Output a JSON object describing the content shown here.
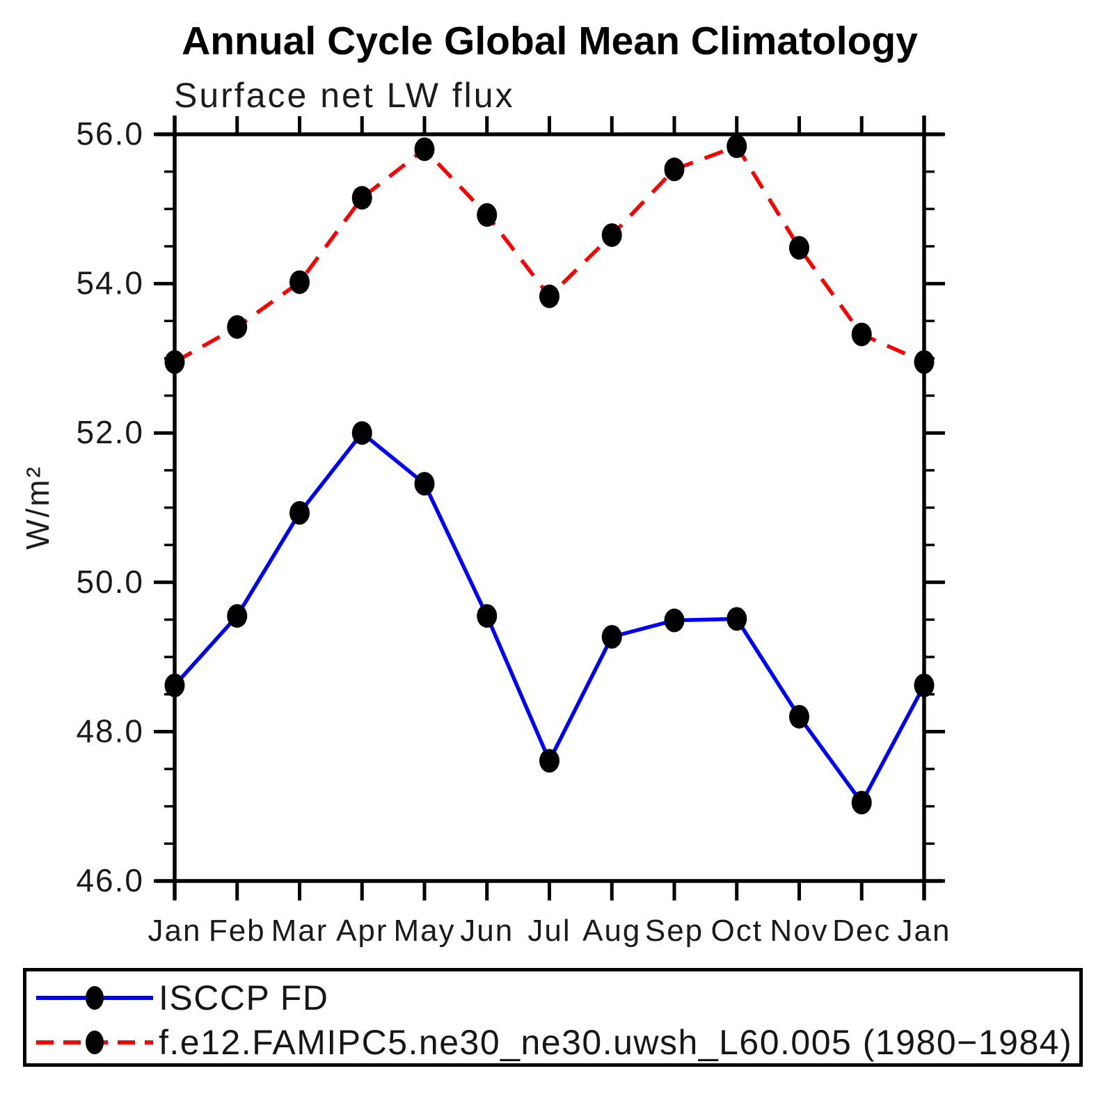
{
  "chart_data": {
    "type": "line",
    "title": "Annual Cycle Global Mean Climatology",
    "subtitle": "Surface net LW flux",
    "ylabel": "W/m²",
    "xlabel": "",
    "categories": [
      "Jan",
      "Feb",
      "Mar",
      "Apr",
      "May",
      "Jun",
      "Jul",
      "Aug",
      "Sep",
      "Oct",
      "Nov",
      "Dec",
      "Jan"
    ],
    "ylim": [
      46.0,
      56.0
    ],
    "ytick_values": [
      46.0,
      48.0,
      50.0,
      52.0,
      54.0,
      56.0
    ],
    "ytick_labels": [
      "46.0",
      "48.0",
      "50.0",
      "52.0",
      "54.0",
      "56.0"
    ],
    "ytick_minor_step": 0.5,
    "grid": false,
    "legend_position": "bottom",
    "marker": "filled-circle",
    "marker_color": "#000000",
    "axis_color": "#000000",
    "series": [
      {
        "name": "ISCCP FD",
        "color": "#0000ff",
        "line_style": "solid",
        "values": [
          48.62,
          49.55,
          50.93,
          52.0,
          51.32,
          49.55,
          47.61,
          49.27,
          49.49,
          49.51,
          48.2,
          47.05,
          48.62
        ]
      },
      {
        "name": "f.e12.FAMIPC5.ne30_ne30.uwsh_L60.005 (1980−1984)",
        "color": "#ff0000",
        "line_style": "dashed",
        "values": [
          52.95,
          53.42,
          54.02,
          55.15,
          55.8,
          54.92,
          53.83,
          54.65,
          55.53,
          55.84,
          54.48,
          53.32,
          52.95
        ]
      }
    ]
  }
}
